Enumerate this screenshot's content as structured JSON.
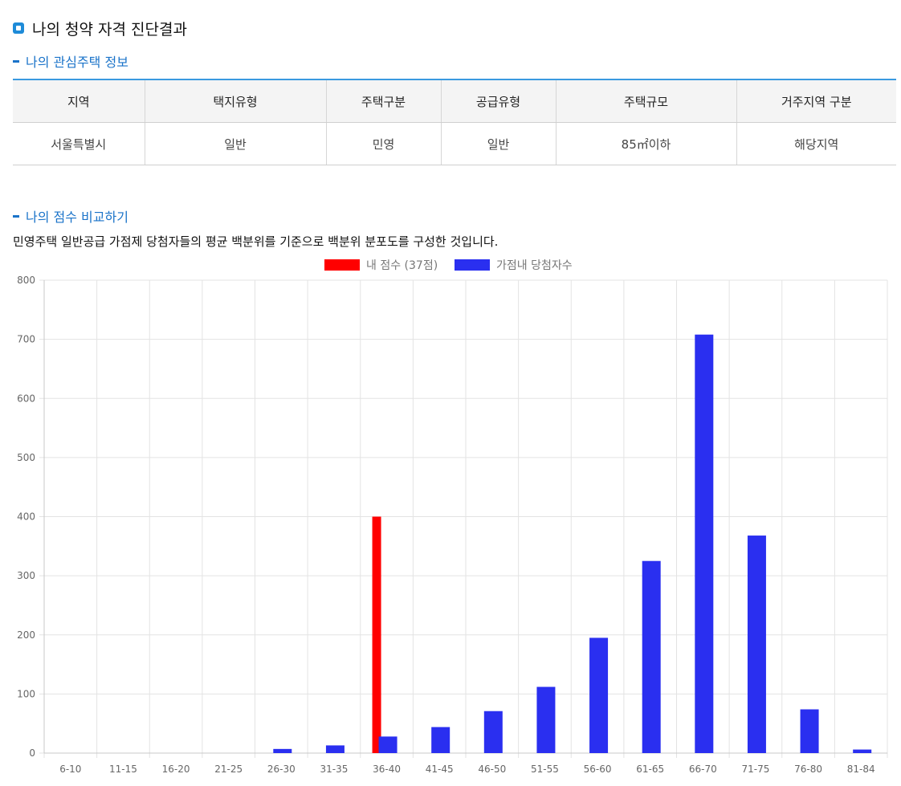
{
  "page": {
    "title": "나의 청약 자격 진단결과",
    "section1_title": "나의 관심주택 정보",
    "section2_title": "나의 점수 비교하기",
    "description": "민영주택 일반공급 가점제 당첨자들의 평균 백분위를 기준으로 백분위 분포도를 구성한 것입니다."
  },
  "housing_info": {
    "headers": [
      "지역",
      "택지유형",
      "주택구분",
      "공급유형",
      "주택규모",
      "거주지역 구분"
    ],
    "values": [
      "서울특별시",
      "일반",
      "민영",
      "일반",
      "85㎡이하",
      "해당지역"
    ]
  },
  "chart_data": {
    "type": "bar",
    "categories": [
      "6-10",
      "11-15",
      "16-20",
      "21-25",
      "26-30",
      "31-35",
      "36-40",
      "41-45",
      "46-50",
      "51-55",
      "56-60",
      "61-65",
      "66-70",
      "71-75",
      "76-80",
      "81-84"
    ],
    "series": [
      {
        "name": "내 점수 (37점)",
        "color": "#ff0000",
        "values": [
          0,
          0,
          0,
          0,
          0,
          0,
          400,
          0,
          0,
          0,
          0,
          0,
          0,
          0,
          0,
          0
        ]
      },
      {
        "name": "가점내 당첨자수",
        "color": "#2a2ff0",
        "values": [
          0,
          0,
          0,
          0,
          7,
          13,
          28,
          44,
          71,
          112,
          195,
          325,
          708,
          368,
          74,
          6
        ]
      }
    ],
    "ylim": [
      0,
      800
    ],
    "yticks": [
      0,
      100,
      200,
      300,
      400,
      500,
      600,
      700,
      800
    ],
    "grid": true,
    "legend": "top-center"
  }
}
